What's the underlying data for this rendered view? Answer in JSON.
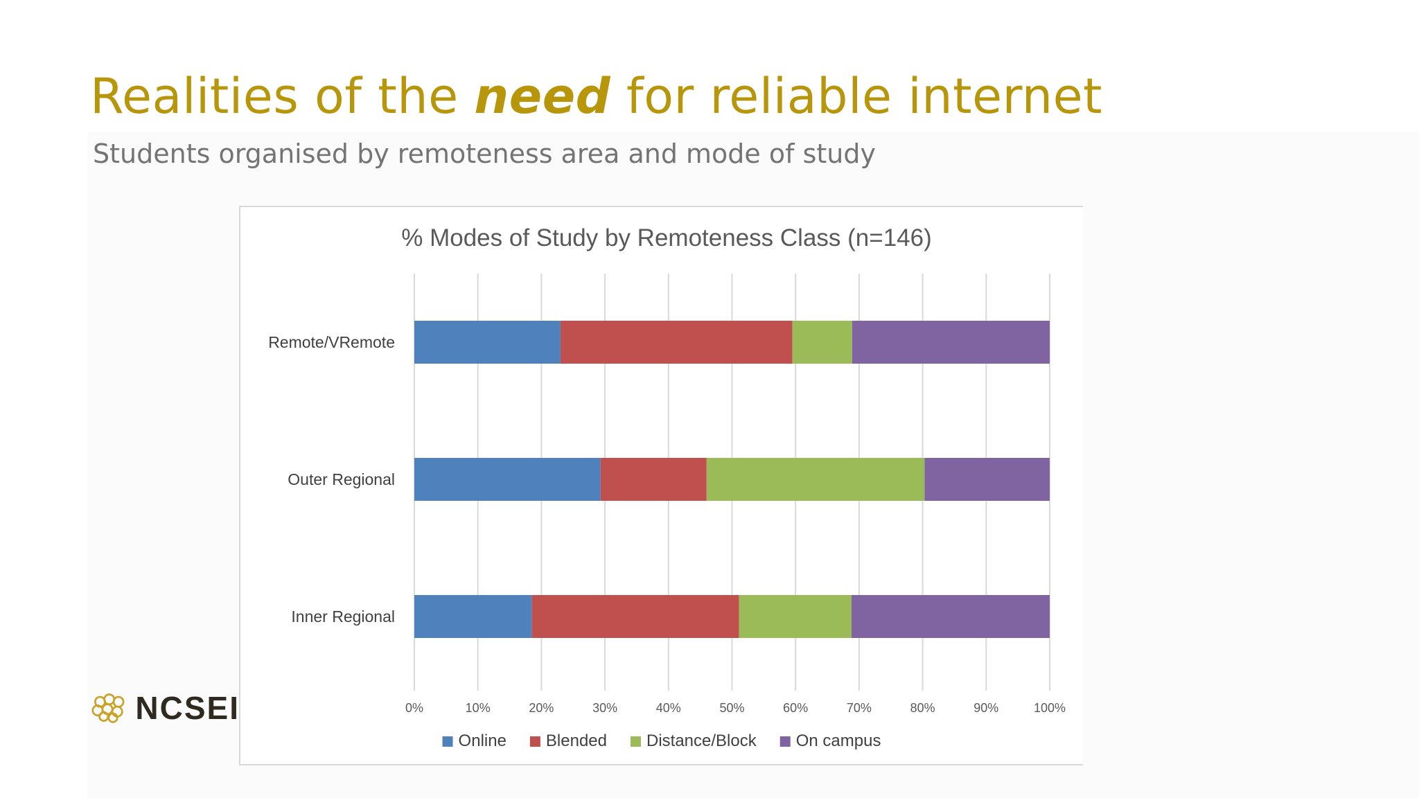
{
  "slide": {
    "title_pre": "Realities of the ",
    "title_emph": "need",
    "title_post": " for reliable internet",
    "subtitle": "Students organised by remoteness area and mode of study",
    "logo_text": "NCSEI"
  },
  "chart_data": {
    "type": "bar",
    "orientation": "horizontal",
    "stacked": "percent",
    "title": "% Modes of Study by Remoteness Class (n=146)",
    "xlabel": "",
    "ylabel": "",
    "categories": [
      "Remote/VRemote",
      "Outer Regional",
      "Inner Regional"
    ],
    "series": [
      {
        "name": "Online",
        "color": "#4f81bd",
        "values": [
          23,
          29.3,
          18.5
        ]
      },
      {
        "name": "Blended",
        "color": "#c0504d",
        "values": [
          36.5,
          16.7,
          32.6
        ]
      },
      {
        "name": "Distance/Block",
        "color": "#9bbb59",
        "values": [
          9.4,
          34.3,
          17.7
        ]
      },
      {
        "name": "On campus",
        "color": "#8064a2",
        "values": [
          31.1,
          19.7,
          31.2
        ]
      }
    ],
    "xlim": [
      0,
      100
    ],
    "xticks": [
      "0%",
      "10%",
      "20%",
      "30%",
      "40%",
      "50%",
      "60%",
      "70%",
      "80%",
      "90%",
      "100%"
    ],
    "grid": true,
    "legend": "bottom"
  }
}
